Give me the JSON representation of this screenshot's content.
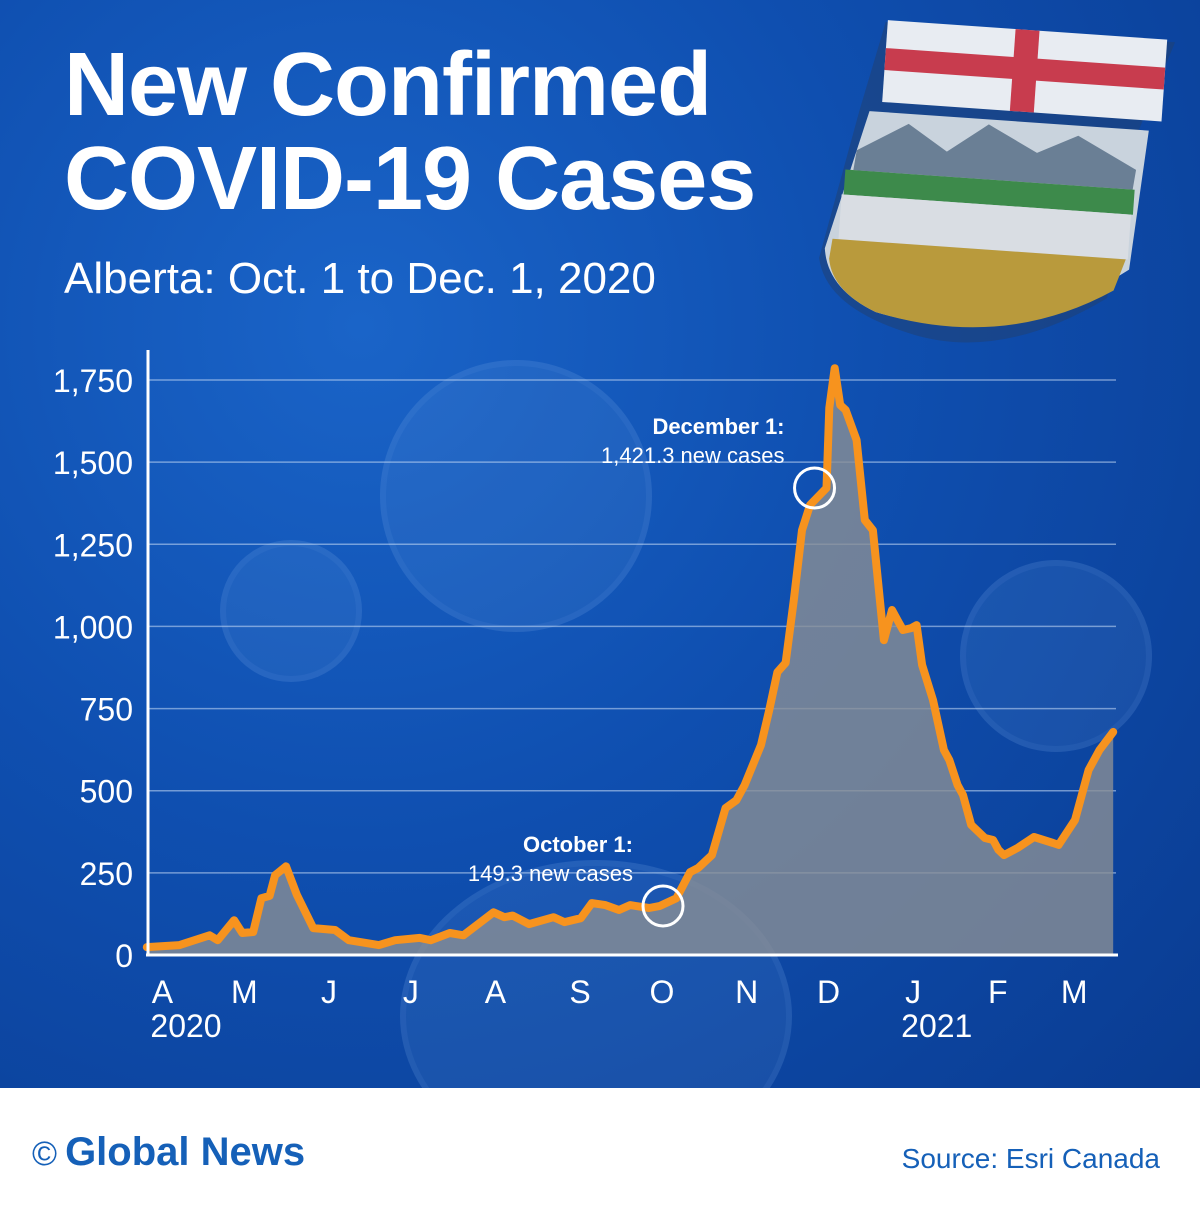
{
  "header": {
    "title_line1": "New Confirmed",
    "title_line2": "COVID-19 Cases",
    "subtitle": "Alberta: Oct. 1 to Dec. 1, 2020"
  },
  "footer": {
    "copyright_symbol": "©",
    "brand": "Global News",
    "source": "Source: Esri Canada"
  },
  "colors": {
    "background": "#0f4fb0",
    "line": "#f7931e",
    "area": "#8a8f95",
    "footer_text": "#1560b8"
  },
  "chart_data": {
    "type": "area",
    "title": "",
    "xlabel": "",
    "ylabel": "",
    "ylim": [
      0,
      1750
    ],
    "yticks": [
      0,
      250,
      500,
      750,
      1000,
      1250,
      1500,
      1750
    ],
    "ytick_labels": [
      "0",
      "250",
      "500",
      "750",
      "1,000",
      "1,250",
      "1,500",
      "1,750"
    ],
    "xticks": [
      {
        "date": "2020-04-01",
        "label": "A"
      },
      {
        "date": "2020-05-01",
        "label": "M"
      },
      {
        "date": "2020-06-01",
        "label": "J"
      },
      {
        "date": "2020-07-01",
        "label": "J"
      },
      {
        "date": "2020-08-01",
        "label": "A"
      },
      {
        "date": "2020-09-01",
        "label": "S"
      },
      {
        "date": "2020-10-01",
        "label": "O"
      },
      {
        "date": "2020-11-01",
        "label": "N"
      },
      {
        "date": "2020-12-01",
        "label": "D"
      },
      {
        "date": "2021-01-01",
        "label": "J"
      },
      {
        "date": "2021-02-01",
        "label": "F"
      },
      {
        "date": "2021-03-01",
        "label": "M"
      }
    ],
    "year_labels": [
      {
        "date": "2020-04-01",
        "label": "2020"
      },
      {
        "date": "2021-01-01",
        "label": "2021"
      }
    ],
    "grid": true,
    "series": [
      {
        "points": [
          [
            "2020-03-27",
            24
          ],
          [
            "2020-04-08",
            30
          ],
          [
            "2020-04-19",
            60
          ],
          [
            "2020-04-22",
            45
          ],
          [
            "2020-04-28",
            106
          ],
          [
            "2020-05-01",
            67
          ],
          [
            "2020-05-05",
            70
          ],
          [
            "2020-05-08",
            173
          ],
          [
            "2020-05-11",
            180
          ],
          [
            "2020-05-13",
            243
          ],
          [
            "2020-05-17",
            270
          ],
          [
            "2020-05-21",
            183
          ],
          [
            "2020-05-27",
            82
          ],
          [
            "2020-06-04",
            76
          ],
          [
            "2020-06-09",
            45
          ],
          [
            "2020-06-20",
            30
          ],
          [
            "2020-06-26",
            45
          ],
          [
            "2020-07-05",
            52
          ],
          [
            "2020-07-09",
            45
          ],
          [
            "2020-07-16",
            67
          ],
          [
            "2020-07-21",
            60
          ],
          [
            "2020-08-01",
            130
          ],
          [
            "2020-08-05",
            115
          ],
          [
            "2020-08-08",
            120
          ],
          [
            "2020-08-14",
            94
          ],
          [
            "2020-08-23",
            115
          ],
          [
            "2020-08-27",
            100
          ],
          [
            "2020-09-02",
            112
          ],
          [
            "2020-09-06",
            158
          ],
          [
            "2020-09-11",
            152
          ],
          [
            "2020-09-16",
            137
          ],
          [
            "2020-09-20",
            152
          ],
          [
            "2020-09-27",
            143
          ],
          [
            "2020-10-01",
            149.3
          ],
          [
            "2020-10-07",
            173
          ],
          [
            "2020-10-12",
            252
          ],
          [
            "2020-10-15",
            265
          ],
          [
            "2020-10-20",
            304
          ],
          [
            "2020-10-25",
            447
          ],
          [
            "2020-10-29",
            471
          ],
          [
            "2020-11-01",
            517
          ],
          [
            "2020-11-07",
            639
          ],
          [
            "2020-11-10",
            745
          ],
          [
            "2020-11-13",
            861
          ],
          [
            "2020-11-16",
            889
          ],
          [
            "2020-11-19",
            1080
          ],
          [
            "2020-11-22",
            1293
          ],
          [
            "2020-11-25",
            1370
          ],
          [
            "2020-12-01",
            1421.3
          ],
          [
            "2020-12-02",
            1665
          ],
          [
            "2020-12-04",
            1786
          ],
          [
            "2020-12-06",
            1674
          ],
          [
            "2020-12-08",
            1659
          ],
          [
            "2020-12-12",
            1567
          ],
          [
            "2020-12-15",
            1324
          ],
          [
            "2020-12-18",
            1293
          ],
          [
            "2020-12-22",
            958
          ],
          [
            "2020-12-25",
            1050
          ],
          [
            "2020-12-27",
            1019
          ],
          [
            "2020-12-29",
            989
          ],
          [
            "2021-01-01",
            995
          ],
          [
            "2021-01-03",
            1004
          ],
          [
            "2021-01-05",
            883
          ],
          [
            "2021-01-09",
            776
          ],
          [
            "2021-01-13",
            624
          ],
          [
            "2021-01-15",
            593
          ],
          [
            "2021-01-18",
            517
          ],
          [
            "2021-01-20",
            487
          ],
          [
            "2021-01-23",
            396
          ],
          [
            "2021-01-28",
            356
          ],
          [
            "2021-01-31",
            350
          ],
          [
            "2021-02-02",
            320
          ],
          [
            "2021-02-04",
            304
          ],
          [
            "2021-02-09",
            326
          ],
          [
            "2021-02-15",
            359
          ],
          [
            "2021-02-22",
            341
          ],
          [
            "2021-02-24",
            335
          ],
          [
            "2021-03-02",
            411
          ],
          [
            "2021-03-07",
            563
          ],
          [
            "2021-03-11",
            624
          ],
          [
            "2021-03-16",
            679
          ]
        ]
      }
    ],
    "annotations": [
      {
        "date": "2020-10-01",
        "value": 149.3,
        "label_bold": "October 1:",
        "label": "149.3 new cases"
      },
      {
        "date": "2020-12-01",
        "value": 1421.3,
        "label_bold": "December 1:",
        "label": "1,421.3 new cases"
      }
    ]
  }
}
